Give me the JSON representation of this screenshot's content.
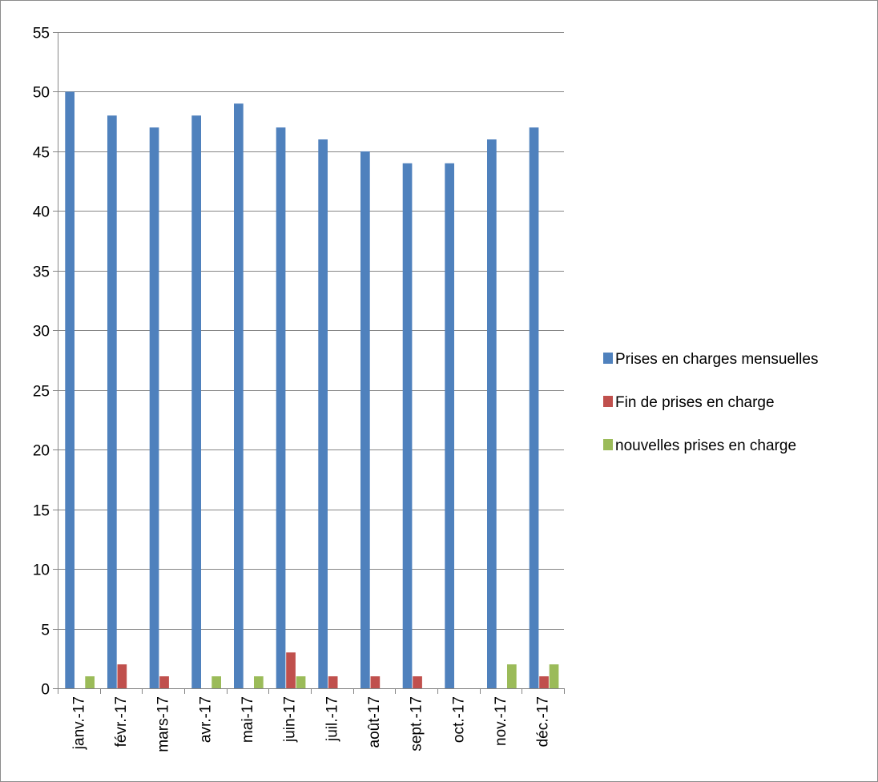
{
  "chart_data": {
    "type": "bar",
    "categories": [
      "janv.-17",
      "févr.-17",
      "mars-17",
      "avr.-17",
      "mai-17",
      "juin-17",
      "juil.-17",
      "août-17",
      "sept.-17",
      "oct.-17",
      "nov.-17",
      "déc.-17"
    ],
    "series": [
      {
        "name": "Prises en charges mensuelles",
        "color": "#4f81bd",
        "values": [
          50,
          48,
          47,
          48,
          49,
          47,
          46,
          45,
          44,
          44,
          46,
          47
        ]
      },
      {
        "name": "Fin de prises en charge",
        "color": "#c0504d",
        "values": [
          0,
          2,
          1,
          0,
          0,
          3,
          1,
          1,
          1,
          0,
          0,
          1
        ]
      },
      {
        "name": "nouvelles prises en charge",
        "color": "#9bbb59",
        "values": [
          1,
          0,
          0,
          1,
          1,
          1,
          0,
          0,
          0,
          0,
          2,
          2
        ]
      }
    ],
    "ylim": [
      0,
      55
    ],
    "yticks": [
      0,
      5,
      10,
      15,
      20,
      25,
      30,
      35,
      40,
      45,
      50,
      55
    ],
    "grid": true,
    "legend": "right",
    "gridline_color": "#868686",
    "axis_color": "#868686"
  }
}
